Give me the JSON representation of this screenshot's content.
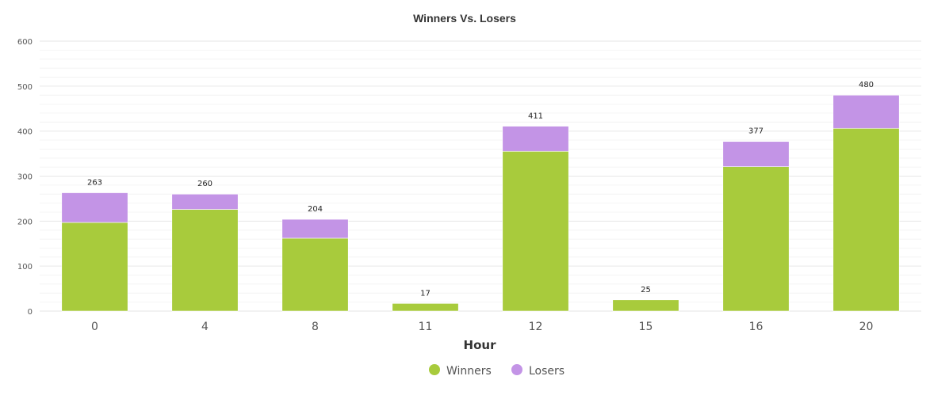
{
  "chart_data": {
    "type": "bar",
    "stacked": true,
    "title": "Winners Vs. Losers",
    "xlabel": "Hour",
    "ylabel": "",
    "ylim": [
      0,
      600
    ],
    "yticks": [
      0,
      100,
      200,
      300,
      400,
      500,
      600
    ],
    "grid": true,
    "legend_position": "bottom",
    "categories": [
      "0",
      "4",
      "8",
      "11",
      "12",
      "15",
      "16",
      "20"
    ],
    "series": [
      {
        "name": "Winners",
        "color": "#a8cb3c",
        "values": [
          197,
          226,
          162,
          17,
          355,
          25,
          321,
          406
        ]
      },
      {
        "name": "Losers",
        "color": "#c394e6",
        "values": [
          66,
          34,
          42,
          0,
          56,
          0,
          56,
          74
        ]
      }
    ],
    "totals": [
      "263",
      "260",
      "204",
      "17",
      "411",
      "25",
      "377",
      "480"
    ]
  }
}
